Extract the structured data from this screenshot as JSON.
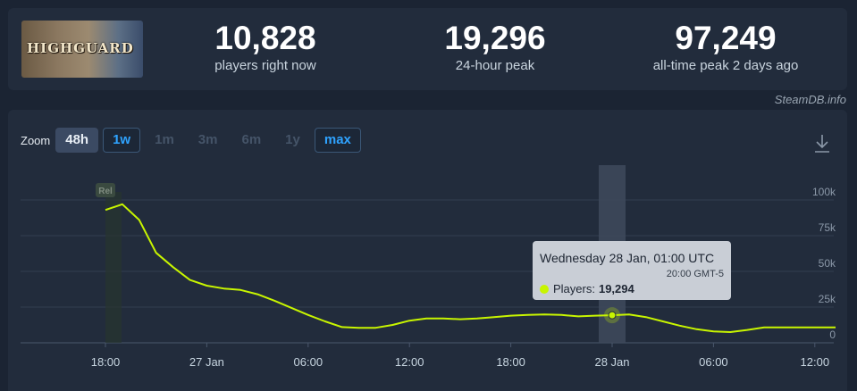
{
  "header": {
    "game_logo_text": "HIGHGUARD",
    "stats": [
      {
        "value": "10,828",
        "label": "players right now"
      },
      {
        "value": "19,296",
        "label": "24-hour peak"
      },
      {
        "value": "97,249",
        "label": "all-time peak 2 days ago"
      }
    ],
    "credit": "SteamDB.info"
  },
  "zoom": {
    "label": "Zoom",
    "options": [
      {
        "label": "48h",
        "state": "active"
      },
      {
        "label": "1w",
        "state": "outlined"
      },
      {
        "label": "1m",
        "state": "disabled"
      },
      {
        "label": "3m",
        "state": "disabled"
      },
      {
        "label": "6m",
        "state": "disabled"
      },
      {
        "label": "1y",
        "state": "disabled"
      },
      {
        "label": "max",
        "state": "outlined"
      }
    ]
  },
  "icons": {
    "download": "download-icon"
  },
  "colors": {
    "line": "#c8f500",
    "panel": "#222c3c",
    "background": "#1b2433",
    "accent": "#2fa3ff",
    "tooltip_bg": "#c9ced6"
  },
  "chart_data": {
    "type": "line",
    "x_ticks": [
      "18:00",
      "27 Jan",
      "06:00",
      "12:00",
      "18:00",
      "28 Jan",
      "06:00",
      "12:00"
    ],
    "x_tick_hours": [
      0,
      6,
      12,
      18,
      24,
      30,
      36,
      42
    ],
    "y_ticks": [
      "0",
      "25k",
      "50k",
      "75k",
      "100k"
    ],
    "ylim": [
      0,
      100000
    ],
    "release_marker": {
      "label": "Rel",
      "hour": 0
    },
    "series": [
      {
        "name": "Players",
        "points": [
          [
            0,
            93000
          ],
          [
            1,
            97000
          ],
          [
            2,
            86000
          ],
          [
            3,
            63000
          ],
          [
            4,
            53000
          ],
          [
            5,
            44000
          ],
          [
            6,
            40000
          ],
          [
            7,
            38000
          ],
          [
            8,
            37000
          ],
          [
            9,
            34000
          ],
          [
            10,
            29500
          ],
          [
            11,
            24500
          ],
          [
            12,
            19500
          ],
          [
            13,
            15000
          ],
          [
            14,
            11000
          ],
          [
            15,
            10500
          ],
          [
            16,
            10500
          ],
          [
            17,
            12500
          ],
          [
            18,
            15500
          ],
          [
            19,
            17000
          ],
          [
            20,
            17000
          ],
          [
            21,
            16500
          ],
          [
            22,
            17000
          ],
          [
            23,
            18000
          ],
          [
            24,
            19000
          ],
          [
            25,
            19500
          ],
          [
            26,
            19800
          ],
          [
            27,
            19500
          ],
          [
            28,
            18500
          ],
          [
            29,
            19000
          ],
          [
            30,
            19294
          ],
          [
            31,
            19800
          ],
          [
            32,
            18000
          ],
          [
            33,
            15000
          ],
          [
            34,
            12000
          ],
          [
            35,
            9500
          ],
          [
            36,
            8000
          ],
          [
            37,
            7500
          ],
          [
            38,
            9000
          ],
          [
            39,
            10828
          ]
        ]
      }
    ],
    "highlight": {
      "hour": 30,
      "value": 19294
    }
  },
  "tooltip": {
    "date": "Wednesday 28 Jan, 01:00 UTC",
    "local_time": "20:00 GMT-5",
    "series_label": "Players:",
    "value": "19,294"
  }
}
